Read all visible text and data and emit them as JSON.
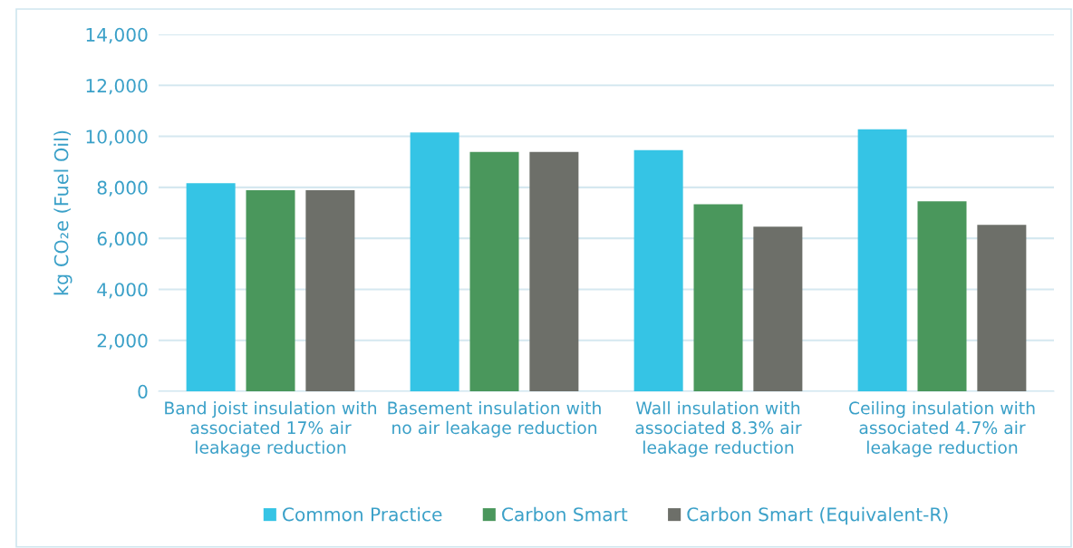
{
  "chart_data": {
    "type": "bar",
    "ylabel": "kg CO₂e (Fuel Oil)",
    "categories": [
      "Band joist insulation with associated 17% air leakage reduction",
      "Basement insulation with no air leakage reduction",
      "Wall insulation with associated 8.3% air leakage reduction",
      "Ceiling insulation with associated 4.7% air leakage reduction"
    ],
    "series": [
      {
        "name": "Common Practice",
        "color": "#35c4e5",
        "values": [
          8160,
          10150,
          9460,
          10280
        ]
      },
      {
        "name": "Carbon Smart",
        "color": "#4a975c",
        "values": [
          7890,
          9390,
          7340,
          7450
        ]
      },
      {
        "name": "Carbon Smart (Equivalent-R)",
        "color": "#6d6f69",
        "values": [
          7890,
          9390,
          6460,
          6530
        ]
      }
    ],
    "ylim": [
      0,
      14000
    ],
    "yticks": [
      {
        "value": 0,
        "label": "0"
      },
      {
        "value": 2000,
        "label": "2,000"
      },
      {
        "value": 4000,
        "label": "4,000"
      },
      {
        "value": 6000,
        "label": "6,000"
      },
      {
        "value": 8000,
        "label": "8,000"
      },
      {
        "value": 10000,
        "label": "10,000"
      },
      {
        "value": 12000,
        "label": "12,000"
      },
      {
        "value": 14000,
        "label": "14,000"
      }
    ],
    "grid": "y",
    "legend": "bottom"
  }
}
